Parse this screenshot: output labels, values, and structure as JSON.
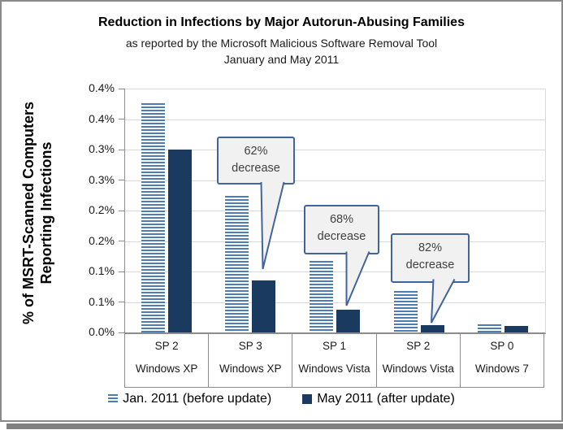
{
  "chart_data": {
    "type": "bar",
    "title": "Reduction in Infections by Major Autorun-Abusing Families",
    "subtitle_line1": "as reported by the Microsoft Malicious Software Removal Tool",
    "subtitle_line2": "January and May 2011",
    "ylabel_line1": "% of MSRT-Scanned Computers",
    "ylabel_line2": "Reporting Infections",
    "ylim_pct": [
      0.0,
      0.4
    ],
    "ytick_step_pct": 0.05,
    "ytick_labels_top_to_bottom": [
      "0.4%",
      "0.4%",
      "0.3%",
      "0.3%",
      "0.2%",
      "0.2%",
      "0.1%",
      "0.1%",
      "0.0%"
    ],
    "grid": true,
    "legend_position": "bottom",
    "categories": [
      {
        "sp": "SP 2",
        "os": "Windows XP"
      },
      {
        "sp": "SP 3",
        "os": "Windows XP"
      },
      {
        "sp": "SP 1",
        "os": "Windows Vista"
      },
      {
        "sp": "SP 2",
        "os": "Windows Vista"
      },
      {
        "sp": "SP 0",
        "os": "Windows 7"
      }
    ],
    "series": [
      {
        "name": "Jan. 2011 (before update)",
        "style": "striped-light-blue",
        "values_pct": [
          0.376,
          0.224,
          0.117,
          0.068,
          0.013
        ]
      },
      {
        "name": "May 2011 (after update)",
        "style": "solid-dark-navy",
        "values_pct": [
          0.3,
          0.085,
          0.037,
          0.012,
          0.011
        ]
      }
    ],
    "annotations": [
      {
        "line1": "62%",
        "line2": "decrease",
        "points_to": "May 2011 bar of Windows XP SP 3"
      },
      {
        "line1": "68%",
        "line2": "decrease",
        "points_to": "May 2011 bar of Windows Vista SP 1"
      },
      {
        "line1": "82%",
        "line2": "decrease",
        "points_to": "May 2011 bar of Windows Vista SP 2"
      }
    ],
    "colors": {
      "before_stripe_blue": "#4a7cb5",
      "after_dark_navy": "#1b3a5f",
      "callout_border": "#41659a",
      "callout_fill": "#f1f1f1",
      "gridline": "#d9d9d9",
      "axis_line": "#8c8c8c",
      "frame_border": "#8a8a8a",
      "drop_shadow": "#808080"
    }
  }
}
